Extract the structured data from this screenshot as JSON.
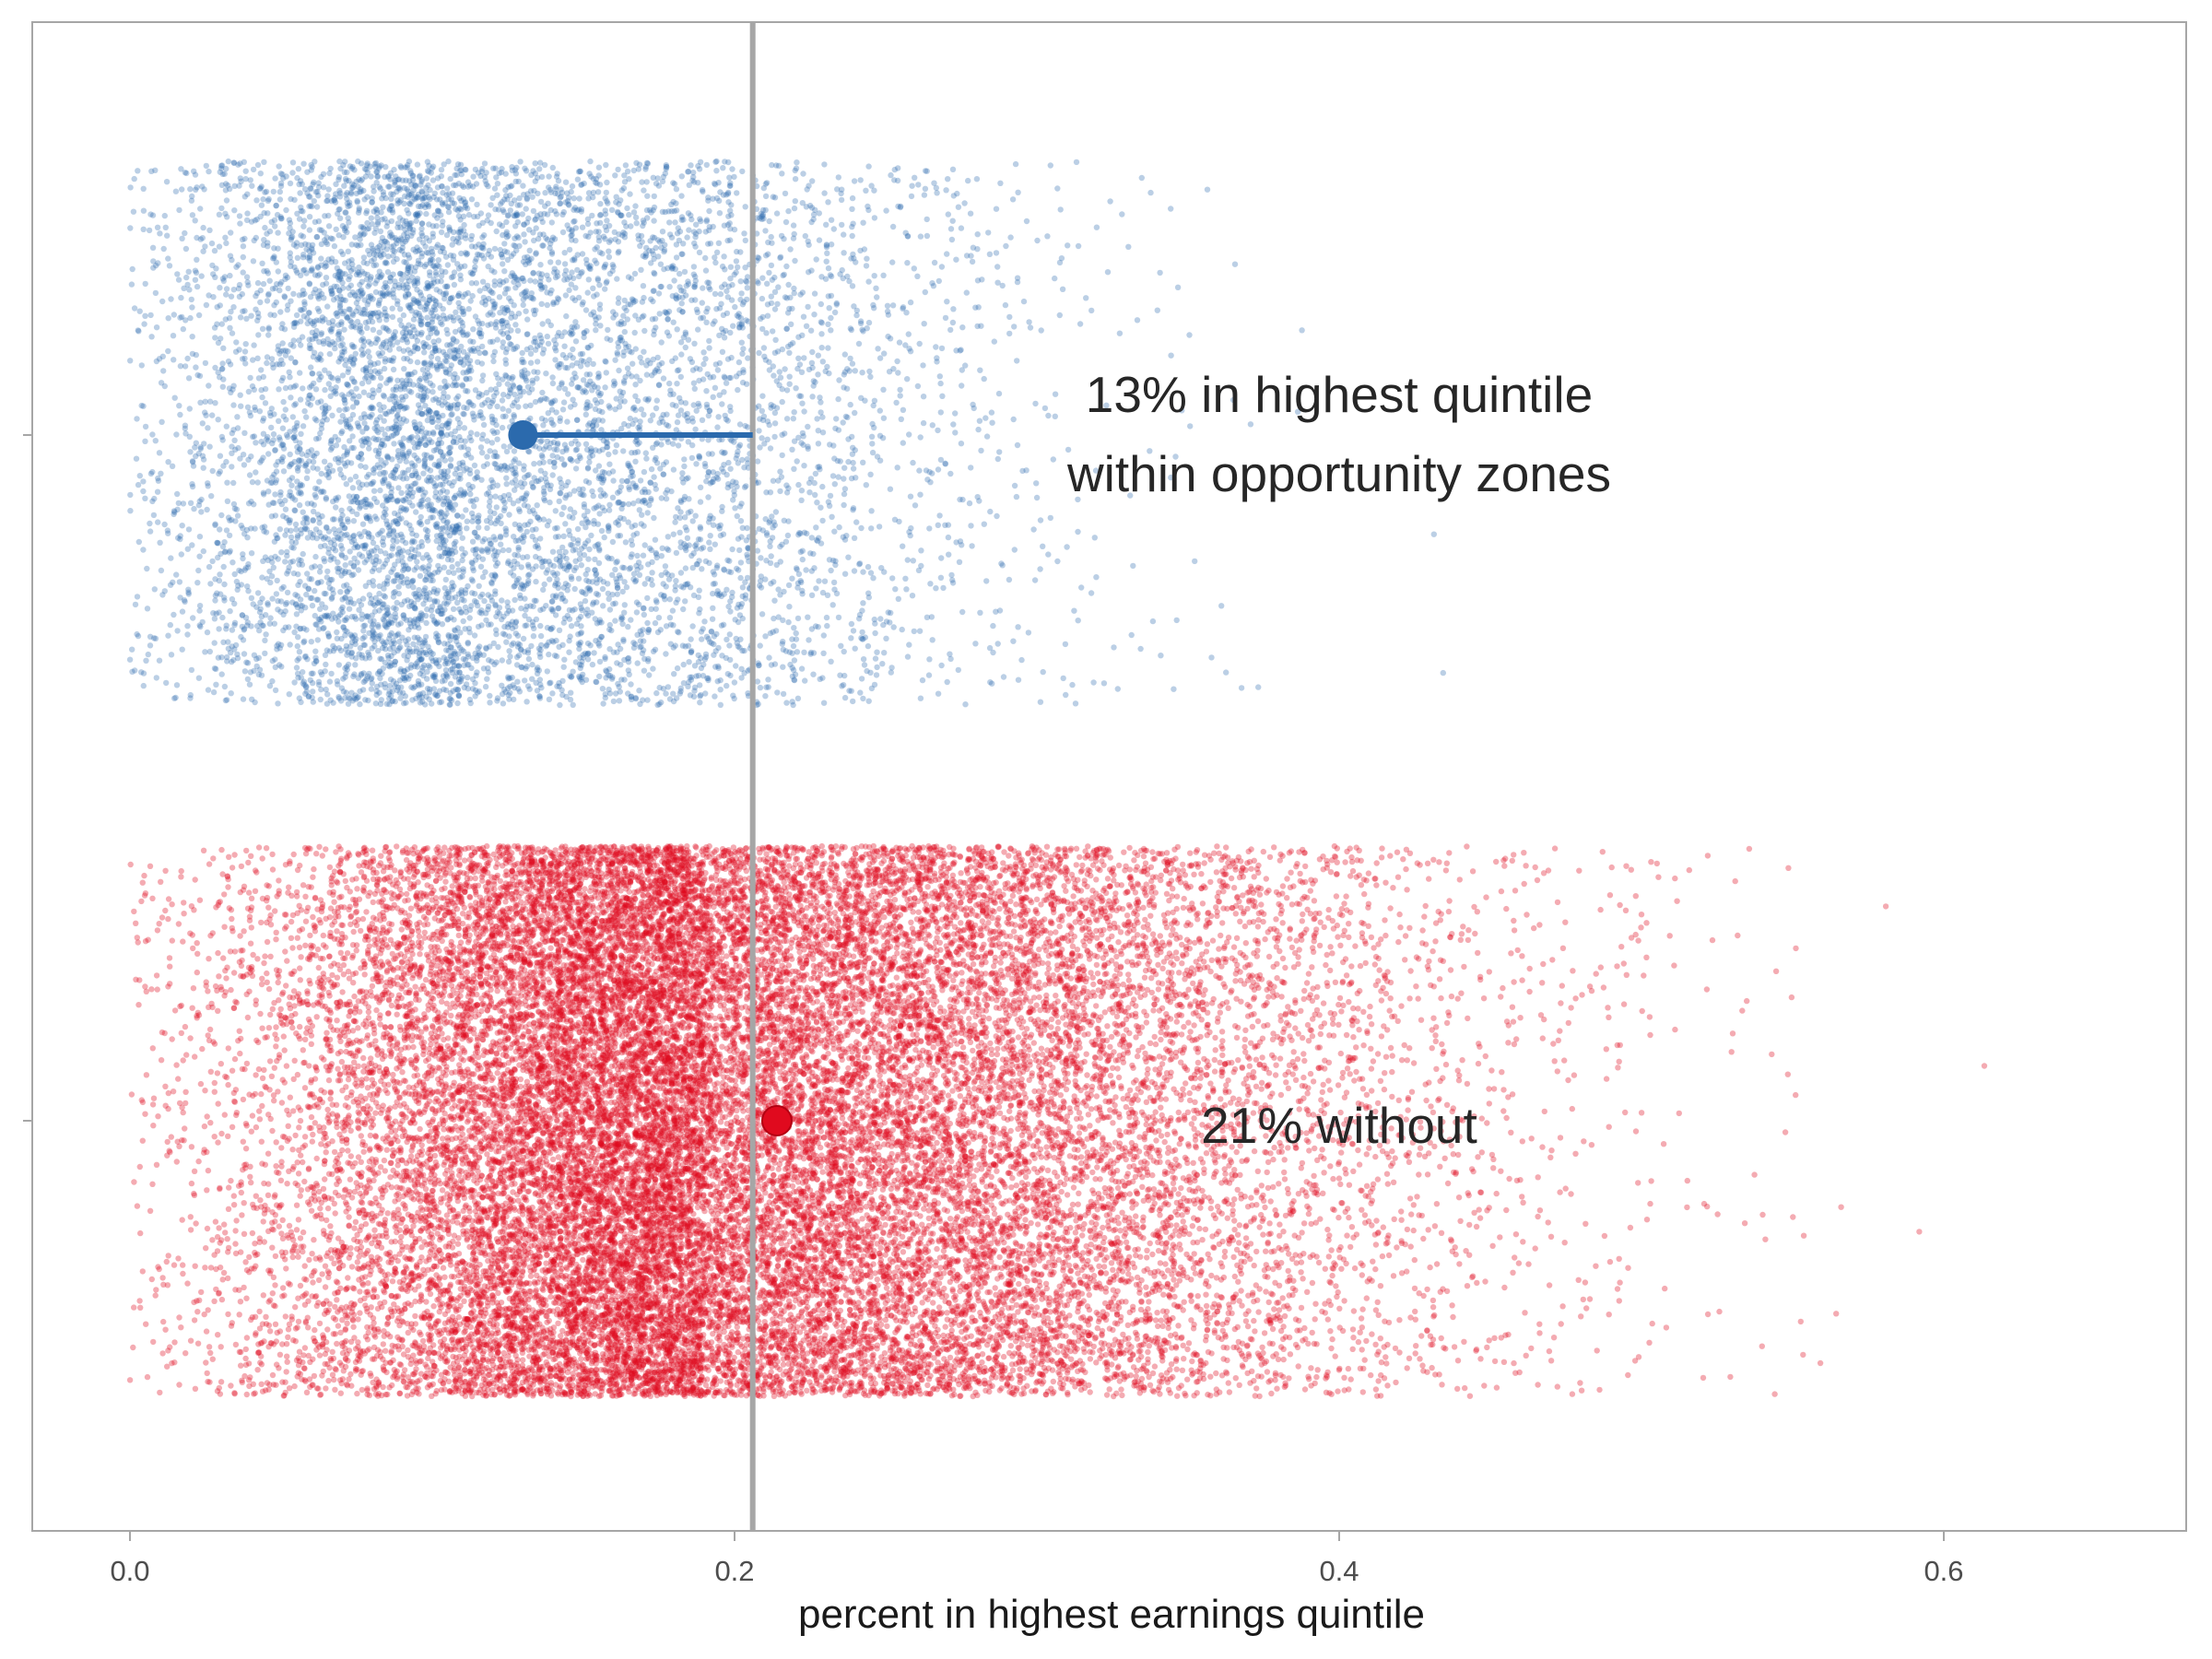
{
  "chart_data": {
    "type": "scatter",
    "title": "",
    "xlabel": "percent in highest earnings quintile",
    "ylabel": "",
    "xlim": [
      -0.016,
      0.68
    ],
    "x_ticks": [
      0.0,
      0.2,
      0.4,
      0.6
    ],
    "x_tick_labels": [
      "0.0",
      "0.2",
      "0.4",
      "0.6"
    ],
    "grid": false,
    "reference_line": {
      "x": 0.206,
      "color": "#a6a6a6"
    },
    "series": [
      {
        "group": "within opportunity zones",
        "color": "#2b6aad",
        "mean": 0.13,
        "x_range": [
          0.0,
          0.465
        ],
        "point_count_approx": 8000,
        "annotation": [
          "13% in highest quintile",
          "within opportunity zones"
        ]
      },
      {
        "group": "without",
        "color": "#e00a1e",
        "mean": 0.214,
        "x_range": [
          0.0,
          0.65
        ],
        "point_count_approx": 30000,
        "annotation": [
          "21% without"
        ]
      }
    ]
  }
}
